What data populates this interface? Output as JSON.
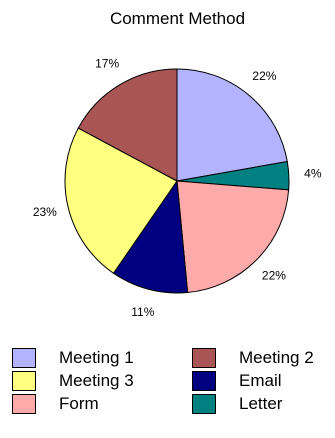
{
  "chart_data": {
    "type": "pie",
    "title": "Comment Method",
    "slices": [
      {
        "name": "Meeting 1",
        "value": 22,
        "label": "22%",
        "color": "#b3b3ff"
      },
      {
        "name": "Letter",
        "value": 4,
        "label": "4%",
        "color": "#008080"
      },
      {
        "name": "Form",
        "value": 22,
        "label": "22%",
        "color": "#ffaaaa"
      },
      {
        "name": "Email",
        "value": 11,
        "label": "11%",
        "color": "#000080"
      },
      {
        "name": "Meeting 3",
        "value": 23,
        "label": "23%",
        "color": "#ffff80"
      },
      {
        "name": "Meeting 2",
        "value": 17,
        "label": "17%",
        "color": "#aa5555"
      }
    ],
    "legend": {
      "placement": "bottom",
      "entries": [
        "Meeting 1",
        "Meeting 2",
        "Meeting 3",
        "Email",
        "Form",
        "Letter"
      ]
    }
  }
}
